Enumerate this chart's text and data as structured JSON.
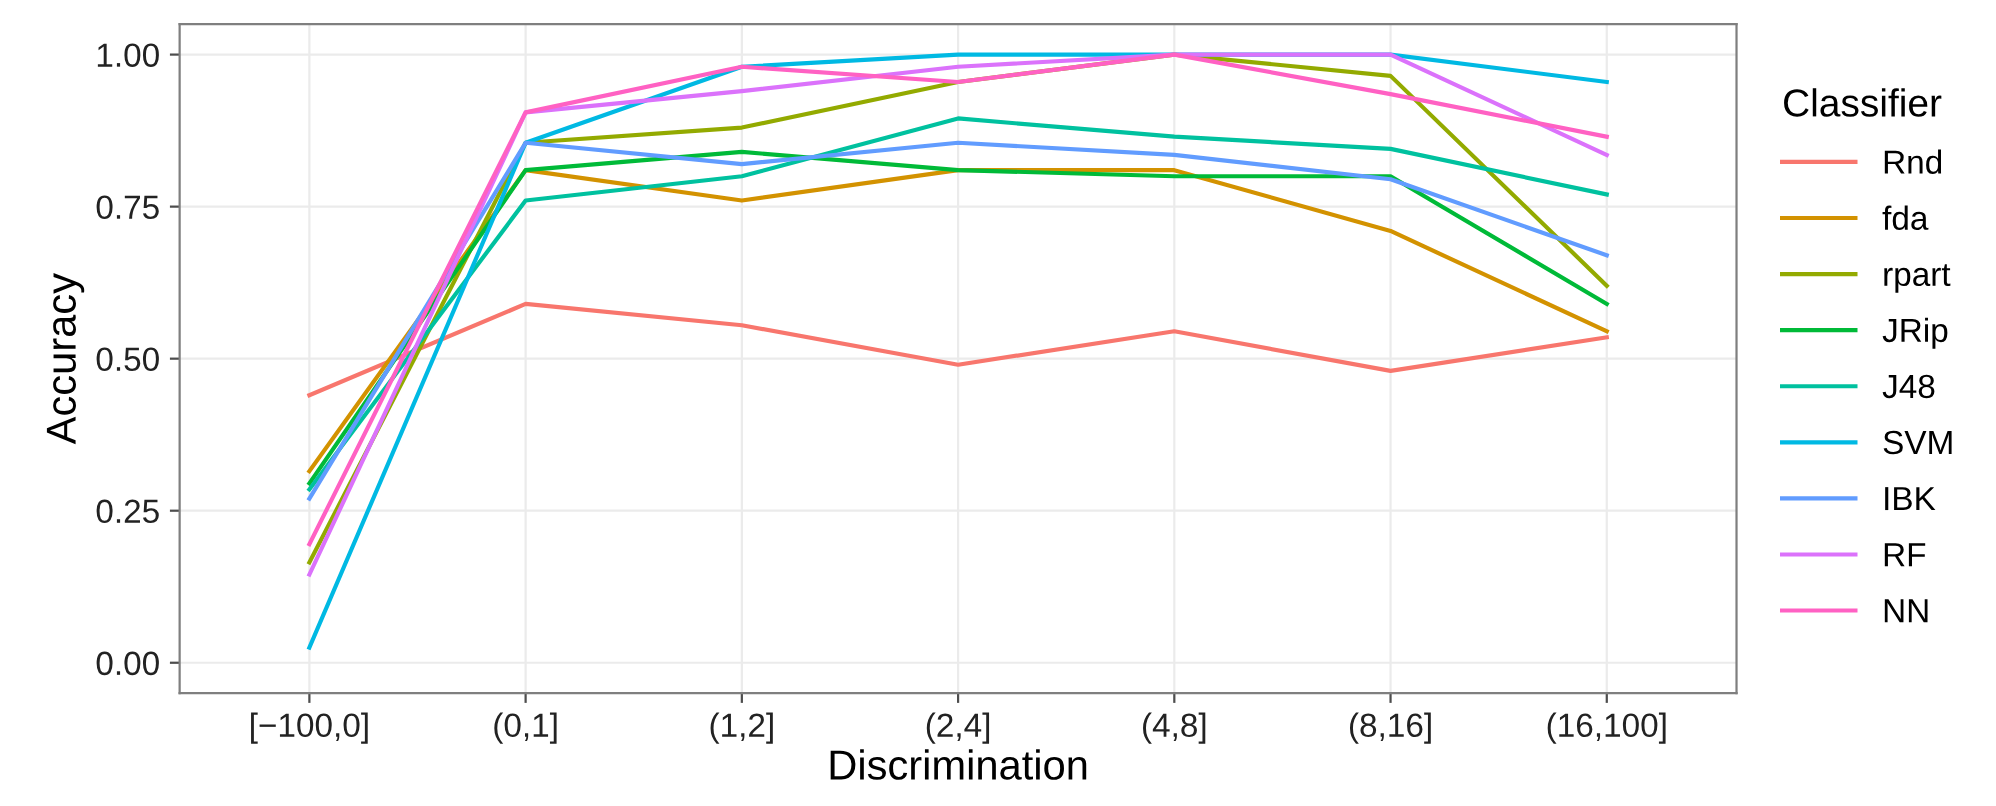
{
  "chart_data": {
    "type": "line",
    "xlabel": "Discrimination",
    "ylabel": "Accuracy",
    "legend_title": "Classifier",
    "legend": "right",
    "grid": true,
    "line_style": "solid",
    "categories": [
      "[−100,0]",
      "(0,1]",
      "(1,2]",
      "(2,4]",
      "(4,8]",
      "(8,16]",
      "(16,100]"
    ],
    "ylim": [
      -0.05,
      1.05
    ],
    "yticks": [
      {
        "value": 0,
        "label": "0.00"
      },
      {
        "value": 0.25,
        "label": "0.25"
      },
      {
        "value": 0.5,
        "label": "0.50"
      },
      {
        "value": 0.75,
        "label": "0.75"
      },
      {
        "value": 1,
        "label": "1.00"
      }
    ],
    "series": [
      {
        "name": "Rnd",
        "color": "#f8766d",
        "values": [
          0.44,
          0.59,
          0.555,
          0.49,
          0.545,
          0.48,
          0.535
        ]
      },
      {
        "name": "fda",
        "color": "#d39200",
        "values": [
          0.315,
          0.81,
          0.76,
          0.81,
          0.81,
          0.71,
          0.545
        ]
      },
      {
        "name": "rpart",
        "color": "#93aa00",
        "values": [
          0.165,
          0.855,
          0.88,
          0.955,
          1.0,
          0.965,
          0.62
        ]
      },
      {
        "name": "JRip",
        "color": "#00ba38",
        "values": [
          0.295,
          0.81,
          0.84,
          0.81,
          0.8,
          0.8,
          0.59
        ]
      },
      {
        "name": "J48",
        "color": "#00c19f",
        "values": [
          0.285,
          0.76,
          0.8,
          0.895,
          0.865,
          0.845,
          0.77
        ]
      },
      {
        "name": "SVM",
        "color": "#00b9e3",
        "values": [
          0.025,
          0.855,
          0.98,
          1.0,
          1.0,
          1.0,
          0.955
        ]
      },
      {
        "name": "IBK",
        "color": "#619cff",
        "values": [
          0.27,
          0.855,
          0.82,
          0.855,
          0.835,
          0.795,
          0.67
        ]
      },
      {
        "name": "RF",
        "color": "#db72fb",
        "values": [
          0.145,
          0.905,
          0.94,
          0.98,
          1.0,
          1.0,
          0.835
        ]
      },
      {
        "name": "NN",
        "color": "#ff61c3",
        "values": [
          0.195,
          0.905,
          0.98,
          0.955,
          1.0,
          0.935,
          0.865
        ]
      }
    ]
  }
}
